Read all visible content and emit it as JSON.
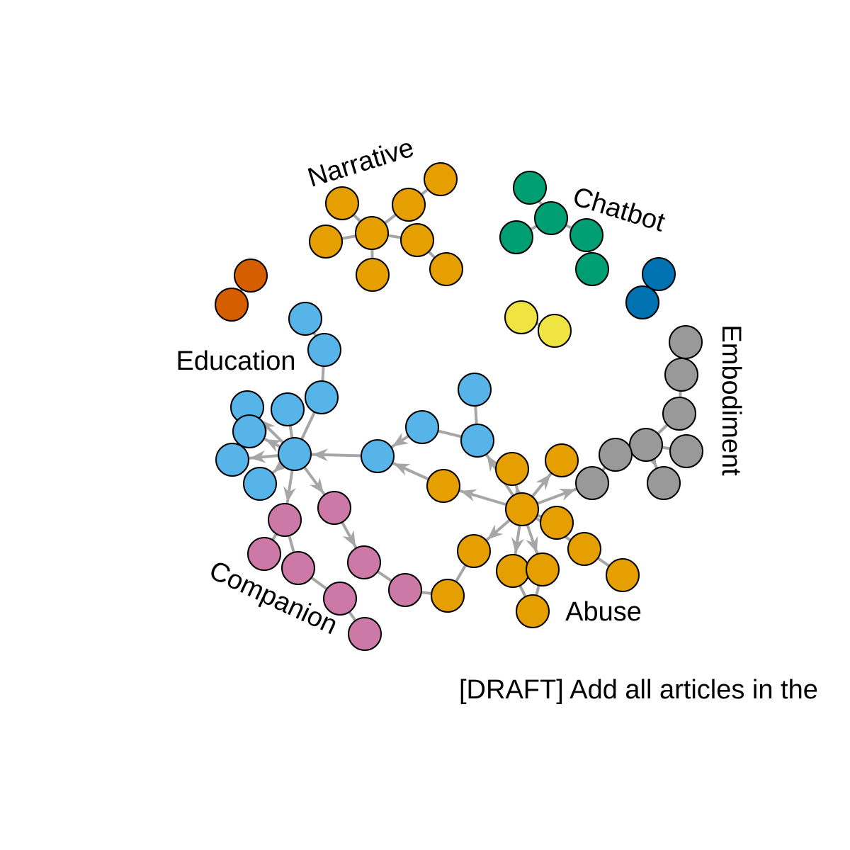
{
  "clusters": {
    "narrative": {
      "label": "Narrative",
      "color": "#E69F00"
    },
    "chatbot": {
      "label": "Chatbot",
      "color": "#009E73"
    },
    "education": {
      "label": "Education",
      "color": "#56B4E9"
    },
    "embodiment": {
      "label": "Embodiment",
      "color": "#999999"
    },
    "companion": {
      "label": "Companion",
      "color": "#CC79A7"
    },
    "abuse": {
      "label": "Abuse",
      "color": "#E69F00"
    },
    "unlabeled_orange": {
      "color": "#D55E00"
    },
    "unlabeled_blue": {
      "color": "#0072B2"
    },
    "unlabeled_yellow": {
      "color": "#F0E442"
    }
  },
  "caption": "[DRAFT] Add all articles in the"
}
